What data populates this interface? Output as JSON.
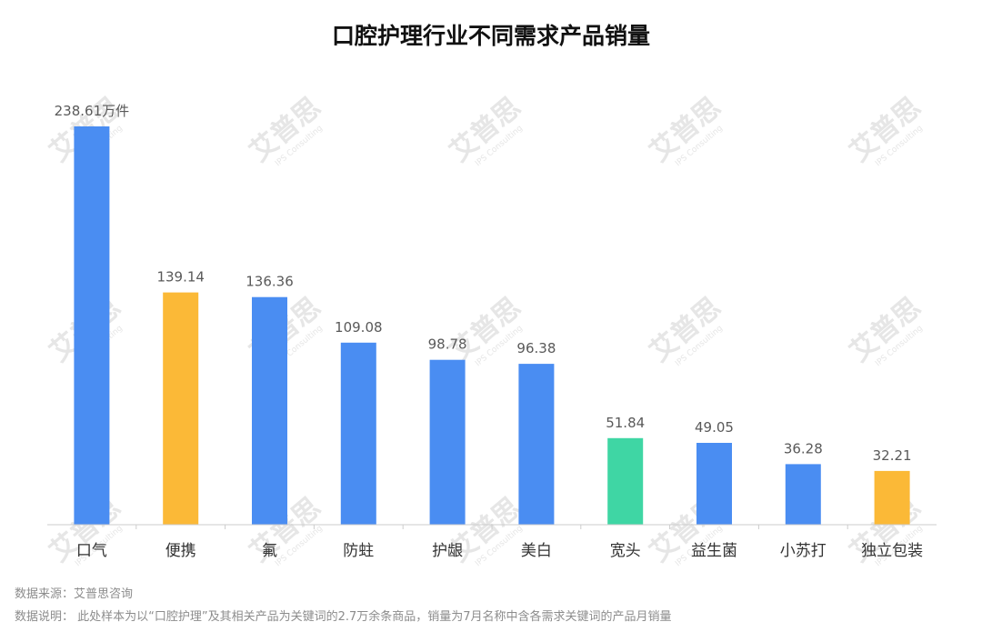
{
  "chart_data": {
    "type": "bar",
    "title": "口腔护理行业不同需求产品销量",
    "categories": [
      "口气",
      "便携",
      "氟",
      "防蛀",
      "护龈",
      "美白",
      "宽头",
      "益生菌",
      "小苏打",
      "独立包装"
    ],
    "values": [
      238.61,
      139.14,
      136.36,
      109.08,
      98.78,
      96.38,
      51.84,
      49.05,
      36.28,
      32.21
    ],
    "data_labels": [
      "238.61万件",
      "139.14",
      "136.36",
      "109.08",
      "98.78",
      "96.38",
      "51.84",
      "49.05",
      "36.28",
      "32.21"
    ],
    "bar_colors": [
      "#4a8df2",
      "#fbb937",
      "#4a8df2",
      "#4a8df2",
      "#4a8df2",
      "#4a8df2",
      "#3fd6a4",
      "#4a8df2",
      "#4a8df2",
      "#fbb937"
    ],
    "ylim": [
      0,
      238.61
    ],
    "grid": false,
    "axis_color": "#cccccc"
  },
  "footer": {
    "source": "数据来源：艾普思咨询",
    "explanation": "数据说明：  此处样本为以“口腔护理”及其相关产品为关键词的2.7万余条商品，销量为7月名称中含各需求关键词的产品月销量"
  },
  "watermark": {
    "text": "艾普思",
    "sub": "IPS Consulting"
  }
}
